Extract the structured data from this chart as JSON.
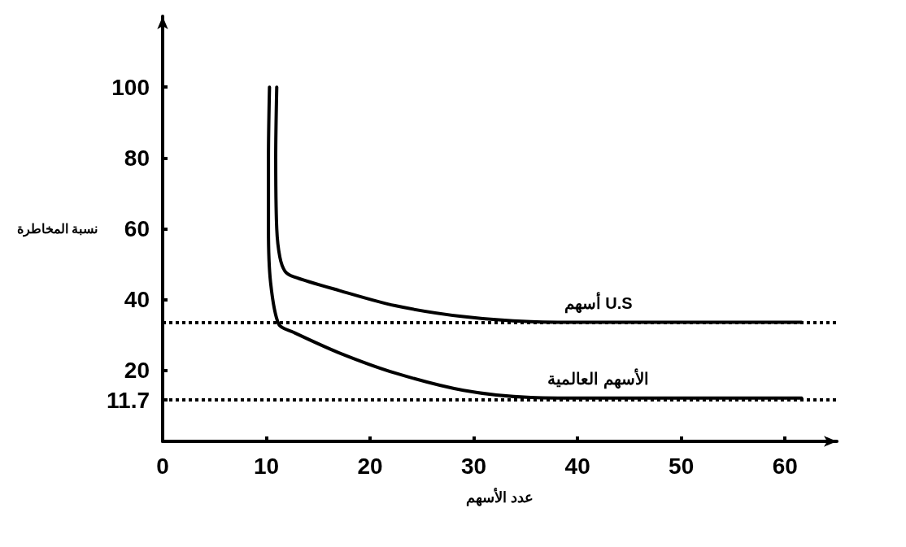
{
  "chart_data": {
    "type": "line",
    "xlabel": "عدد الأسهم",
    "ylabel": "نسبة المخاطرة",
    "xlim": [
      0,
      65
    ],
    "xticks": [
      0,
      10,
      20,
      30,
      40,
      50,
      60
    ],
    "ylim": [
      0,
      120
    ],
    "yticks": [
      11.7,
      20,
      40,
      60,
      80,
      100
    ],
    "series": [
      {
        "name": "أسهم U.S",
        "color": "#000000",
        "x": [
          11.0,
          10.9,
          11.0,
          11.3,
          11.8,
          12.6,
          17.0,
          22.4,
          29.0,
          35.5,
          42.0,
          61.6
        ],
        "values": [
          100,
          80,
          60,
          52,
          48,
          46.5,
          42.6,
          38.3,
          35.2,
          33.8,
          33.6,
          33.6
        ]
      },
      {
        "name": "الأسهم العالمية",
        "color": "#000000",
        "x": [
          10.3,
          10.2,
          10.2,
          10.4,
          11.2,
          12.6,
          17.0,
          22.4,
          29.0,
          35.5,
          42.0,
          61.6
        ],
        "values": [
          100,
          80,
          60,
          45,
          33,
          30.8,
          25,
          19.3,
          14.4,
          12.4,
          12.2,
          12.2
        ]
      }
    ],
    "ref_lines": [
      {
        "axis": "y",
        "value": 33.5,
        "line_style": "dotted",
        "color": "#000000"
      },
      {
        "axis": "y",
        "value": 11.7,
        "line_style": "dotted",
        "color": "#000000"
      }
    ],
    "grid": false,
    "marker": "none",
    "line_style": "solid"
  }
}
